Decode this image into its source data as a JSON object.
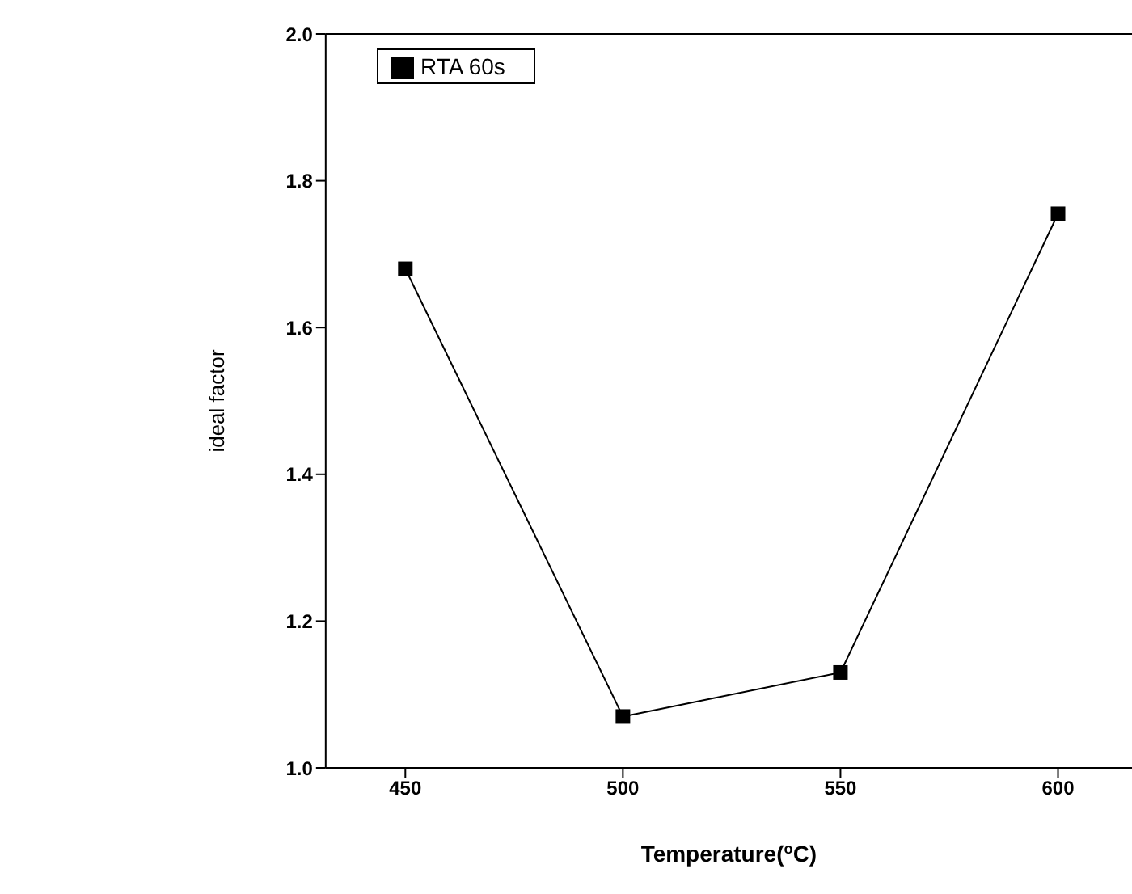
{
  "chart_data": {
    "type": "line",
    "xlabel": "Temperature($^{o}$C)",
    "ylabel": "ideal factor",
    "x": [
      450,
      500,
      550,
      600
    ],
    "series": [
      {
        "name": "RTA 60s",
        "color": "#000000",
        "values": [
          1.68,
          1.07,
          1.13,
          1.755
        ]
      }
    ],
    "xlim": [
      431.7,
      617
    ],
    "xticks": [
      450,
      500,
      550,
      600
    ],
    "ylim": [
      1.0,
      2.0
    ],
    "yticks": [
      {
        "value": 1,
        "label": "1.0"
      },
      1.2,
      1.4,
      1.6,
      1.8,
      {
        "value": 2,
        "label": "2.0"
      }
    ],
    "grid": false,
    "legend": "top left",
    "marker": "square",
    "line_style": "solid"
  }
}
